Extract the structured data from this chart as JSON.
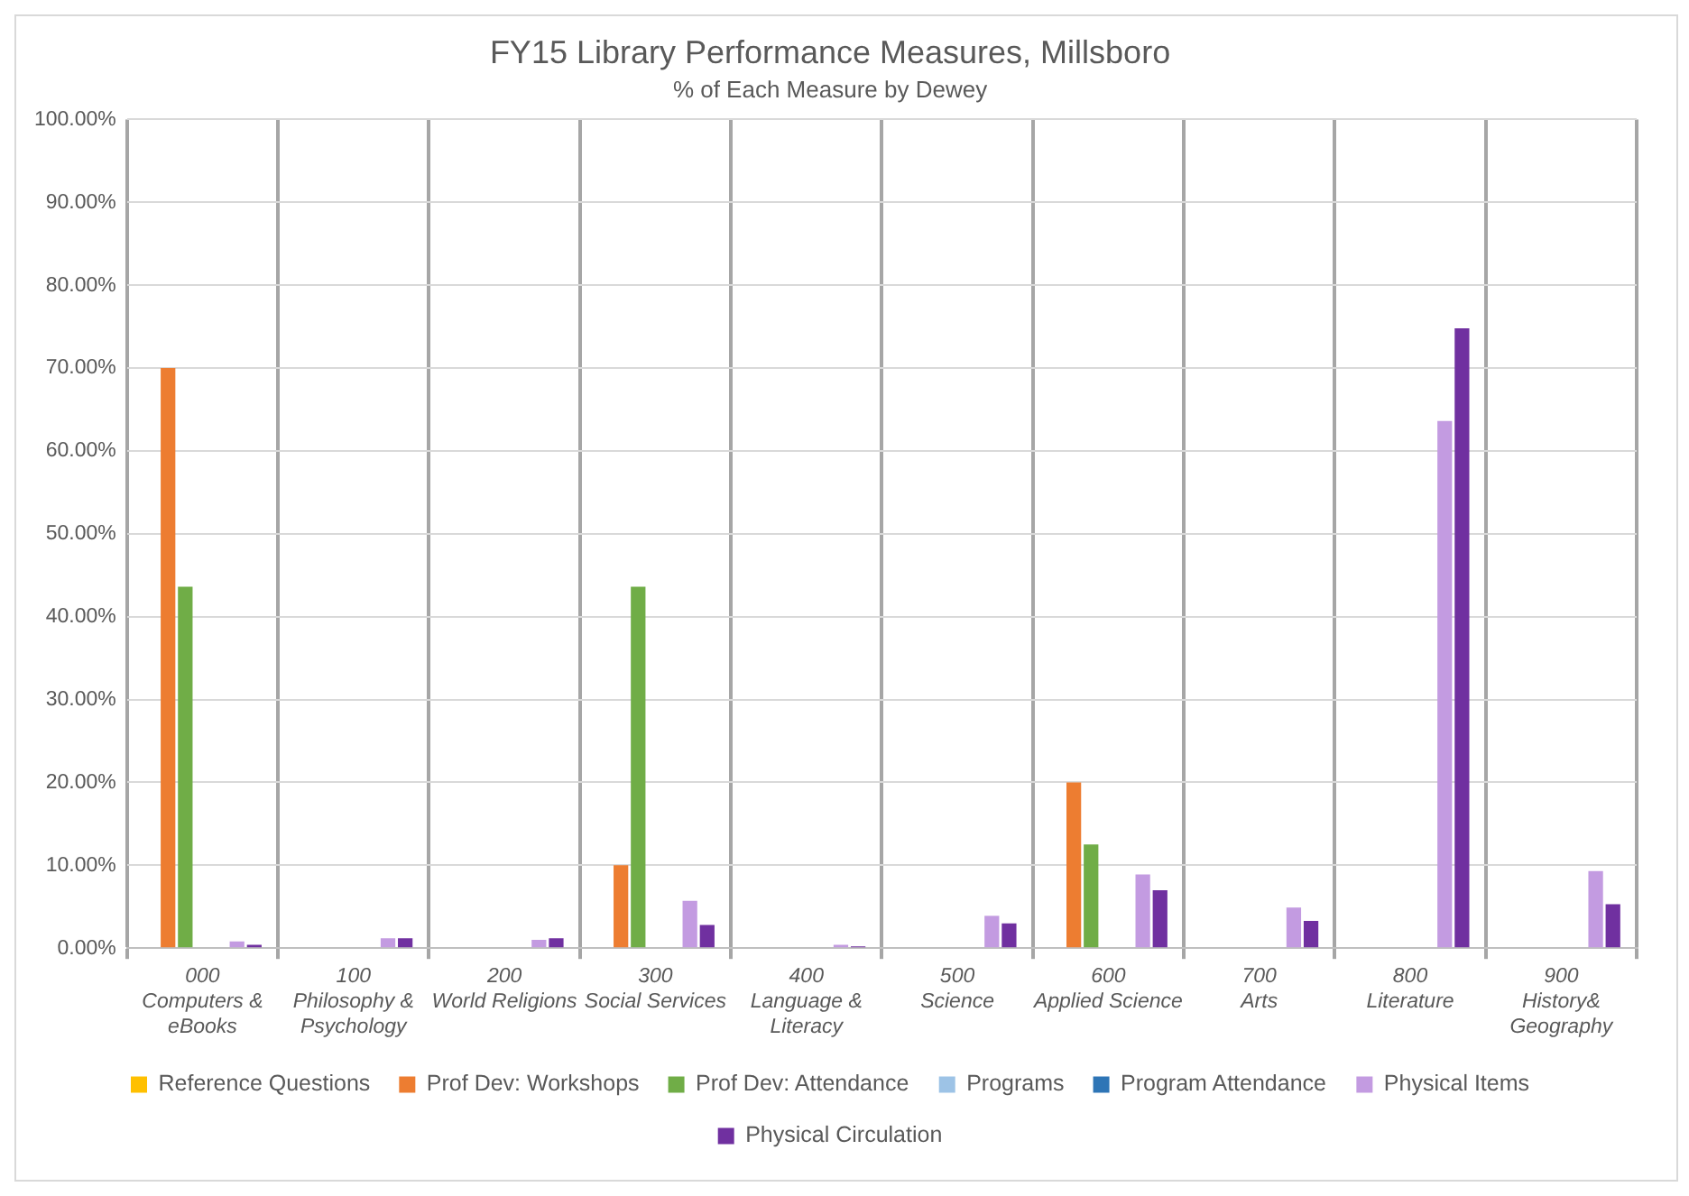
{
  "chart_data": {
    "type": "bar",
    "title": "FY15 Library Performance Measures, Millsboro",
    "subtitle": "% of Each Measure by Dewey",
    "categories": [
      "000\nComputers &\neBooks",
      "100\nPhilosophy &\nPsychology",
      "200\nWorld Religions",
      "300\nSocial Services",
      "400\nLanguage &\nLiteracy",
      "500\nScience",
      "600\nApplied Science",
      "700\nArts",
      "800\nLiterature",
      "900\nHistory&\nGeography"
    ],
    "series": [
      {
        "name": "Reference Questions",
        "color": "#ffc000",
        "values": [
          0,
          0,
          0,
          0,
          0,
          0,
          0,
          0,
          0,
          0
        ]
      },
      {
        "name": "Prof Dev: Workshops",
        "color": "#ed7d31",
        "values": [
          70,
          0,
          0,
          10,
          0,
          0,
          20,
          0,
          0,
          0
        ]
      },
      {
        "name": "Prof Dev: Attendance",
        "color": "#70ad47",
        "values": [
          43.6,
          0,
          0,
          43.6,
          0,
          0,
          12.5,
          0,
          0,
          0
        ]
      },
      {
        "name": "Programs",
        "color": "#9dc3e6",
        "values": [
          0,
          0,
          0,
          0,
          0,
          0,
          0,
          0,
          0,
          0
        ]
      },
      {
        "name": "Program Attendance",
        "color": "#2e75b6",
        "values": [
          0,
          0,
          0,
          0,
          0,
          0,
          0,
          0,
          0,
          0
        ]
      },
      {
        "name": "Physical Items",
        "color": "#c39be1",
        "values": [
          0.8,
          1.2,
          1.0,
          5.7,
          0.4,
          3.9,
          8.9,
          4.9,
          63.6,
          9.3
        ]
      },
      {
        "name": "Physical Circulation",
        "color": "#7030a0",
        "values": [
          0.4,
          1.2,
          1.2,
          2.8,
          0.2,
          3.0,
          7.0,
          3.3,
          74.8,
          5.3
        ]
      }
    ],
    "ylim": [
      0,
      100
    ],
    "yticks": [
      {
        "value": 0,
        "label": "0.00%"
      },
      {
        "value": 10,
        "label": "10.00%"
      },
      {
        "value": 20,
        "label": "20.00%"
      },
      {
        "value": 30,
        "label": "30.00%"
      },
      {
        "value": 40,
        "label": "40.00%"
      },
      {
        "value": 50,
        "label": "50.00%"
      },
      {
        "value": 60,
        "label": "60.00%"
      },
      {
        "value": 70,
        "label": "70.00%"
      },
      {
        "value": 80,
        "label": "80.00%"
      },
      {
        "value": 90,
        "label": "90.00%"
      },
      {
        "value": 100,
        "label": "100.00%"
      }
    ],
    "grid": true,
    "legend": "bottom"
  }
}
